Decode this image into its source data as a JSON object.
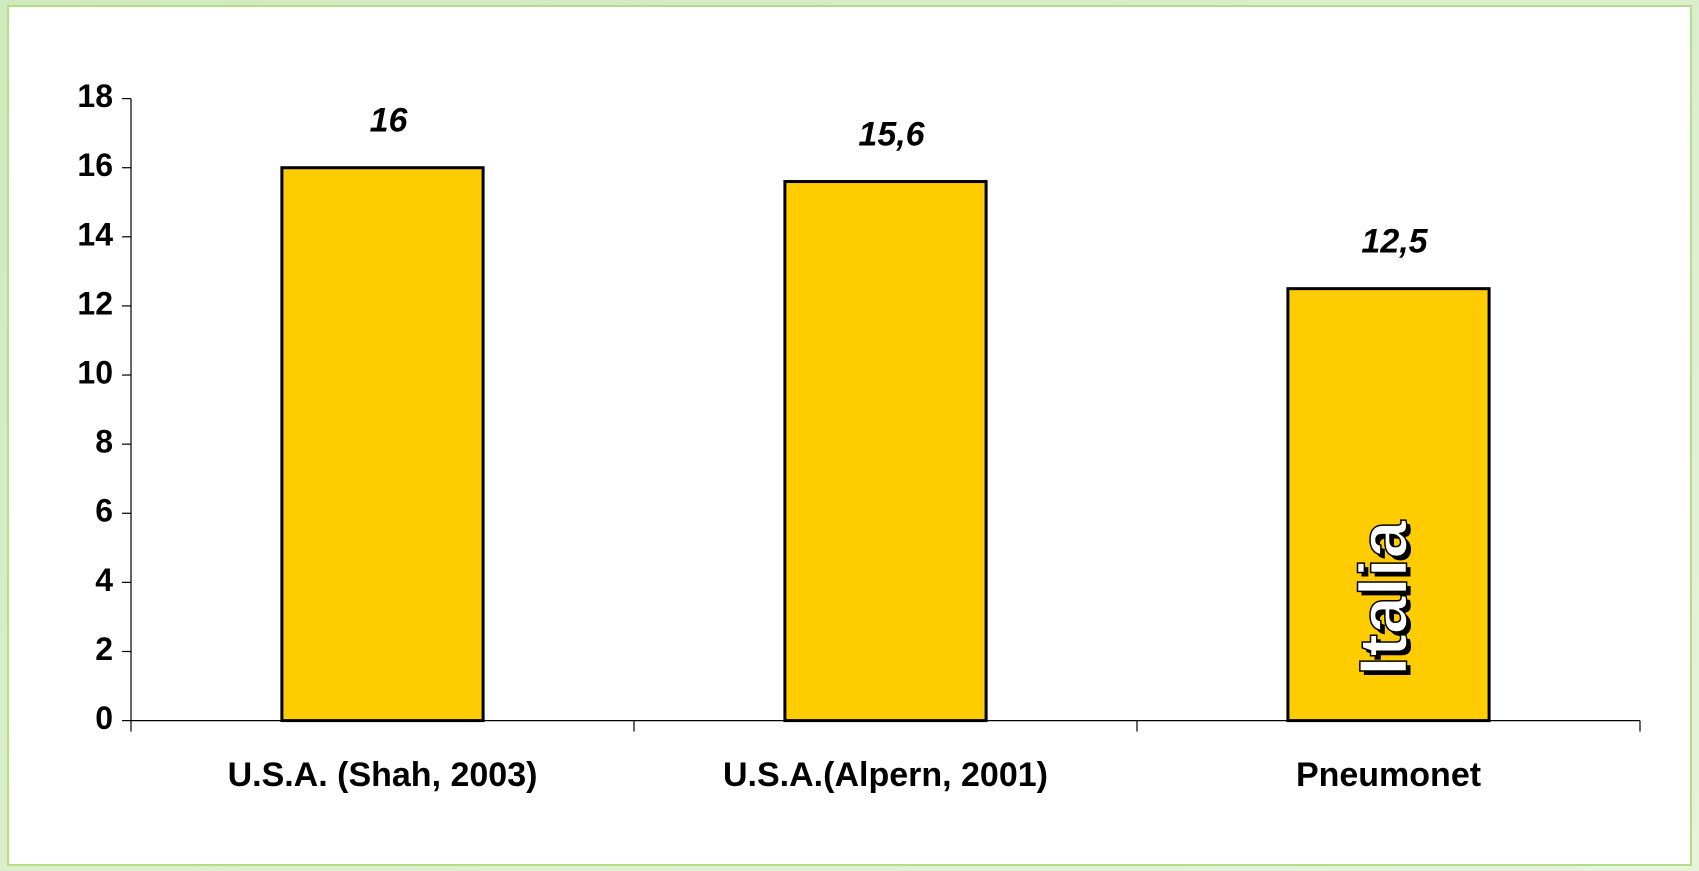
{
  "chart_data": {
    "type": "bar",
    "categories": [
      "U.S.A. (Shah, 2003)",
      "U.S.A.(Alpern, 2001)",
      "Pneumonet"
    ],
    "values": [
      16,
      15.6,
      12.5
    ],
    "value_labels": [
      "16",
      "15,6",
      "12,5"
    ],
    "color": "#ffcc00",
    "annotations": [
      "Italia"
    ],
    "ylim": [
      0,
      18
    ],
    "yticks": [
      0,
      2,
      4,
      6,
      8,
      10,
      12,
      14,
      16,
      18
    ],
    "grid": false
  }
}
